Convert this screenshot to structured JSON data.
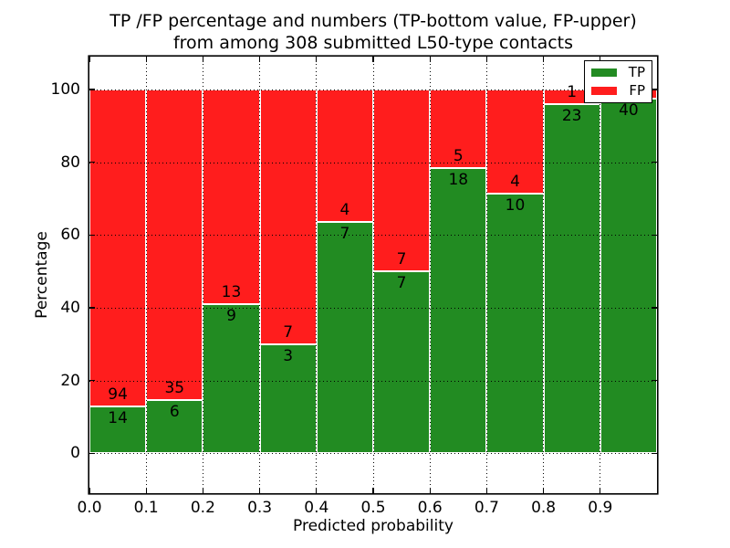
{
  "figure": {
    "title_line1": "TP /FP percentage and numbers (TP-bottom value, FP-upper)",
    "title_line2": "from among 308 submitted L50-type contacts",
    "xlabel": "Predicted probability",
    "ylabel": "Percentage",
    "colors": {
      "tp": "#228b22",
      "fp": "#ff1d1d",
      "bar_edge": "#ffffff",
      "grid": "#000000"
    },
    "legend": [
      {
        "label": "TP",
        "color_key": "tp"
      },
      {
        "label": "FP",
        "color_key": "fp"
      }
    ]
  },
  "chart_data": {
    "type": "bar",
    "stacked": true,
    "normalized_to_percent": true,
    "title": "TP /FP percentage and numbers (TP-bottom value, FP-upper) from among 308 submitted L50-type contacts",
    "xlabel": "Predicted probability",
    "ylabel": "Percentage",
    "total_contacts": 308,
    "bin_width": 0.1,
    "categories": [
      "0.0-0.1",
      "0.1-0.2",
      "0.2-0.3",
      "0.3-0.4",
      "0.4-0.5",
      "0.5-0.6",
      "0.6-0.7",
      "0.7-0.8",
      "0.8-0.9",
      "0.9-1.0"
    ],
    "series": [
      {
        "name": "TP",
        "counts": [
          14,
          6,
          9,
          3,
          7,
          7,
          18,
          10,
          23,
          40
        ]
      },
      {
        "name": "FP",
        "counts": [
          94,
          35,
          13,
          7,
          4,
          7,
          5,
          4,
          1,
          1
        ]
      }
    ],
    "tp_percent": [
      12.96,
      14.63,
      40.91,
      30.0,
      63.64,
      50.0,
      78.26,
      71.43,
      95.83,
      97.56
    ],
    "xticks": [
      "0.0",
      "0.1",
      "0.2",
      "0.3",
      "0.4",
      "0.5",
      "0.6",
      "0.7",
      "0.8",
      "0.9"
    ],
    "yticks": [
      0,
      20,
      40,
      60,
      80,
      100
    ],
    "xlim": [
      0.0,
      1.0
    ],
    "ylim": [
      -11,
      109
    ],
    "grid": "dotted",
    "legend_position": "upper right"
  }
}
